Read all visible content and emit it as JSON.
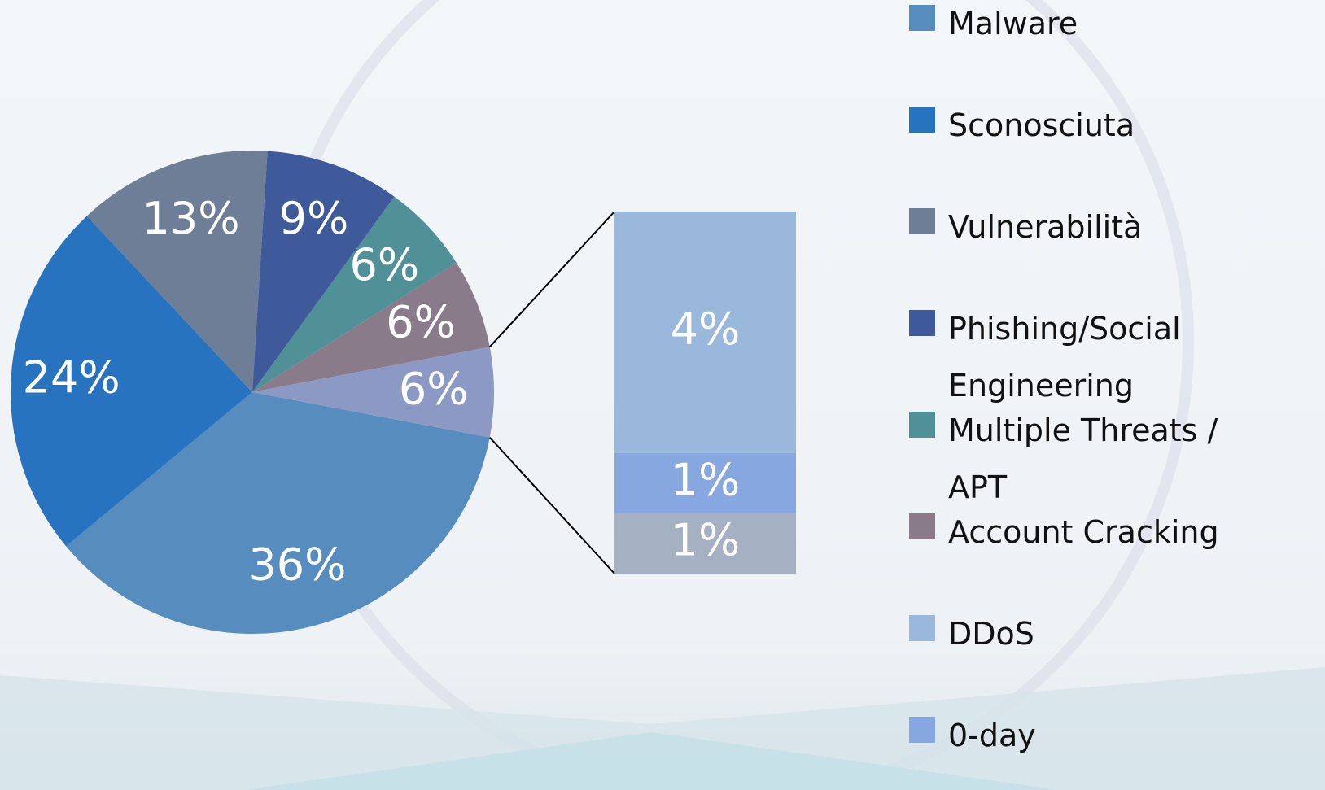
{
  "chart_data": {
    "type": "pie",
    "categories": [
      "Malware",
      "Sconosciuta",
      "Vulnerabilità",
      "Phishing/Social Engineering",
      "Multiple Threats / APT",
      "Account Cracking",
      null
    ],
    "values": [
      36,
      24,
      13,
      9,
      6,
      6,
      6
    ],
    "value_labels": [
      "36%",
      "24%",
      "13%",
      "9%",
      "6%",
      "6%",
      "6%"
    ],
    "colors": [
      "#578cbf",
      "#2873c0",
      "#6e7e96",
      "#3f5a9a",
      "#4f9197",
      "#8a7b8b",
      "#8c99c4"
    ],
    "breakdown": {
      "categories": [
        "DDoS",
        "0-day",
        null
      ],
      "values": [
        4,
        1,
        1
      ],
      "value_labels": [
        "4%",
        "1%",
        "1%"
      ],
      "colors": [
        "#9ab8dc",
        "#86a7df",
        "#a6b0c3"
      ]
    }
  }
}
